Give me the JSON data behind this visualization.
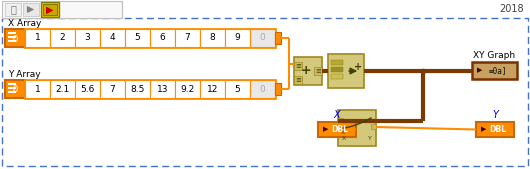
{
  "bg_color": "#ffffff",
  "outer_border_color": "#4472c4",
  "toolbar_bg": "#f0f0f0",
  "toolbar_border": "#b0b0b0",
  "year_text": "2018",
  "year_color": "#404040",
  "x_array_label": "X Array",
  "y_array_label": "Y Array",
  "x_values": [
    "1",
    "2",
    "3",
    "4",
    "5",
    "6",
    "7",
    "8",
    "9",
    "0"
  ],
  "y_values": [
    "1",
    "2.1",
    "5.6",
    "7",
    "8.5",
    "13",
    "9.2",
    "12",
    "5",
    "0"
  ],
  "xy_graph_label": "XY Graph",
  "x_label": "X",
  "y_label": "Y",
  "orange": "#FF8C00",
  "orange_mid": "#e07800",
  "orange_dark": "#cc6600",
  "node_bg": "#d4c87a",
  "node_border": "#a08820",
  "wire_brown": "#7a3b00",
  "wire_orange": "#FF8C00",
  "graph_term_bg": "#c8a060",
  "graph_term_border": "#7a3000"
}
